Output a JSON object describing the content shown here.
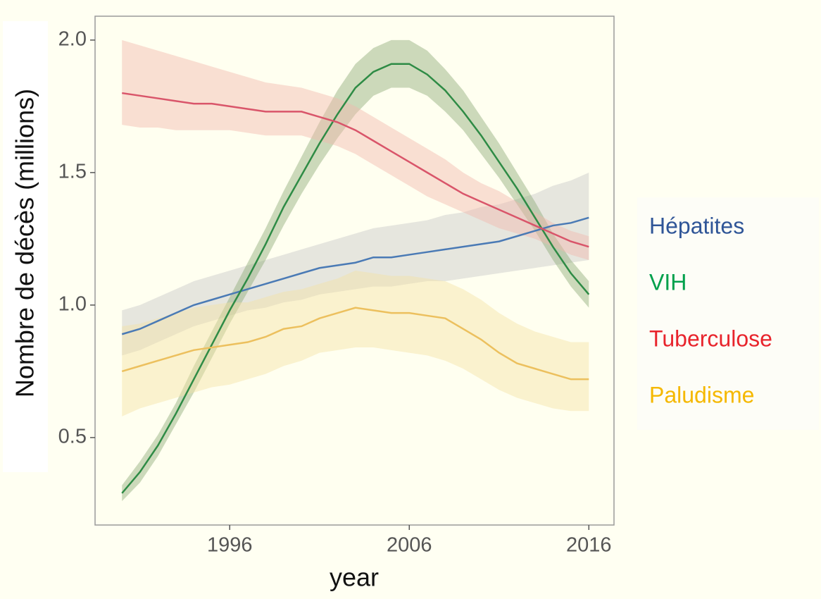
{
  "chart_data": {
    "type": "line",
    "x_label": "year",
    "y_label": "Nombre de décès   (millions)",
    "x": [
      1990,
      1991,
      1992,
      1993,
      1994,
      1995,
      1996,
      1997,
      1998,
      1999,
      2000,
      2001,
      2002,
      2003,
      2004,
      2005,
      2006,
      2007,
      2008,
      2009,
      2010,
      2011,
      2012,
      2013,
      2014,
      2015,
      2016
    ],
    "xlim": [
      1988.5,
      2017.4
    ],
    "xticks": [
      1996,
      2006,
      2016
    ],
    "ylim": [
      0.17,
      2.09
    ],
    "yticks": [
      0.5,
      {
        "value": 1.0,
        "label": "1.0"
      },
      1.5,
      {
        "value": 2.0,
        "label": "2.0"
      }
    ],
    "series": [
      {
        "name": "Hépatites",
        "color": "#4a7ab5",
        "band_color": "#c8c8c8",
        "legend_color": "#2f5597",
        "values": [
          0.89,
          0.91,
          0.94,
          0.97,
          1.0,
          1.02,
          1.04,
          1.06,
          1.08,
          1.1,
          1.12,
          1.14,
          1.15,
          1.16,
          1.18,
          1.18,
          1.19,
          1.2,
          1.21,
          1.22,
          1.23,
          1.24,
          1.26,
          1.28,
          1.3,
          1.31,
          1.33
        ],
        "lower": [
          0.81,
          0.83,
          0.86,
          0.89,
          0.92,
          0.94,
          0.96,
          0.98,
          0.99,
          1.01,
          1.02,
          1.04,
          1.05,
          1.06,
          1.07,
          1.07,
          1.08,
          1.09,
          1.09,
          1.1,
          1.11,
          1.12,
          1.13,
          1.14,
          1.15,
          1.16,
          1.17
        ],
        "upper": [
          0.98,
          1.0,
          1.03,
          1.06,
          1.09,
          1.11,
          1.13,
          1.15,
          1.17,
          1.19,
          1.21,
          1.23,
          1.25,
          1.27,
          1.29,
          1.3,
          1.31,
          1.32,
          1.34,
          1.35,
          1.37,
          1.38,
          1.4,
          1.42,
          1.45,
          1.47,
          1.5
        ]
      },
      {
        "name": "VIH",
        "color": "#2e8b45",
        "band_color": "#8faa78",
        "legend_color": "#00a04b",
        "values": [
          0.29,
          0.37,
          0.47,
          0.59,
          0.72,
          0.85,
          0.98,
          1.1,
          1.23,
          1.37,
          1.49,
          1.61,
          1.72,
          1.82,
          1.88,
          1.91,
          1.91,
          1.87,
          1.81,
          1.73,
          1.64,
          1.54,
          1.44,
          1.33,
          1.22,
          1.12,
          1.04
        ],
        "lower": [
          0.26,
          0.33,
          0.43,
          0.55,
          0.67,
          0.8,
          0.93,
          1.05,
          1.17,
          1.3,
          1.42,
          1.53,
          1.63,
          1.72,
          1.79,
          1.82,
          1.82,
          1.79,
          1.73,
          1.66,
          1.57,
          1.48,
          1.38,
          1.28,
          1.17,
          1.07,
          0.99
        ],
        "upper": [
          0.32,
          0.41,
          0.51,
          0.63,
          0.77,
          0.9,
          1.03,
          1.16,
          1.29,
          1.43,
          1.56,
          1.69,
          1.81,
          1.91,
          1.97,
          2.0,
          2.0,
          1.96,
          1.89,
          1.81,
          1.71,
          1.61,
          1.5,
          1.39,
          1.27,
          1.17,
          1.09
        ]
      },
      {
        "name": "Tuberculose",
        "color": "#d9556a",
        "band_color": "#f2b8ae",
        "legend_color": "#e8242c",
        "values": [
          1.8,
          1.79,
          1.78,
          1.77,
          1.76,
          1.76,
          1.75,
          1.74,
          1.73,
          1.73,
          1.73,
          1.71,
          1.69,
          1.66,
          1.62,
          1.58,
          1.54,
          1.5,
          1.46,
          1.42,
          1.39,
          1.36,
          1.33,
          1.3,
          1.27,
          1.24,
          1.22
        ],
        "lower": [
          1.68,
          1.67,
          1.67,
          1.66,
          1.66,
          1.66,
          1.66,
          1.65,
          1.64,
          1.64,
          1.64,
          1.62,
          1.6,
          1.57,
          1.53,
          1.49,
          1.45,
          1.41,
          1.38,
          1.35,
          1.32,
          1.29,
          1.27,
          1.25,
          1.22,
          1.19,
          1.17
        ],
        "upper": [
          2.0,
          1.98,
          1.96,
          1.94,
          1.92,
          1.9,
          1.88,
          1.86,
          1.84,
          1.83,
          1.82,
          1.8,
          1.78,
          1.75,
          1.71,
          1.67,
          1.63,
          1.59,
          1.55,
          1.5,
          1.46,
          1.43,
          1.39,
          1.35,
          1.31,
          1.28,
          1.26
        ]
      },
      {
        "name": "Paludisme",
        "color": "#ecc05e",
        "band_color": "#f5e3a4",
        "legend_color": "#f5b800",
        "values": [
          0.75,
          0.77,
          0.79,
          0.81,
          0.83,
          0.84,
          0.85,
          0.86,
          0.88,
          0.91,
          0.92,
          0.95,
          0.97,
          0.99,
          0.98,
          0.97,
          0.97,
          0.96,
          0.95,
          0.91,
          0.87,
          0.82,
          0.78,
          0.76,
          0.74,
          0.72,
          0.72
        ],
        "lower": [
          0.58,
          0.61,
          0.63,
          0.65,
          0.67,
          0.69,
          0.7,
          0.72,
          0.74,
          0.77,
          0.79,
          0.82,
          0.83,
          0.84,
          0.84,
          0.83,
          0.82,
          0.81,
          0.79,
          0.76,
          0.72,
          0.68,
          0.65,
          0.63,
          0.61,
          0.6,
          0.6
        ],
        "upper": [
          0.92,
          0.93,
          0.95,
          0.97,
          0.99,
          1.0,
          1.01,
          1.01,
          1.03,
          1.05,
          1.06,
          1.08,
          1.1,
          1.13,
          1.12,
          1.11,
          1.11,
          1.1,
          1.09,
          1.06,
          1.02,
          0.97,
          0.93,
          0.9,
          0.88,
          0.86,
          0.86
        ]
      }
    ]
  }
}
